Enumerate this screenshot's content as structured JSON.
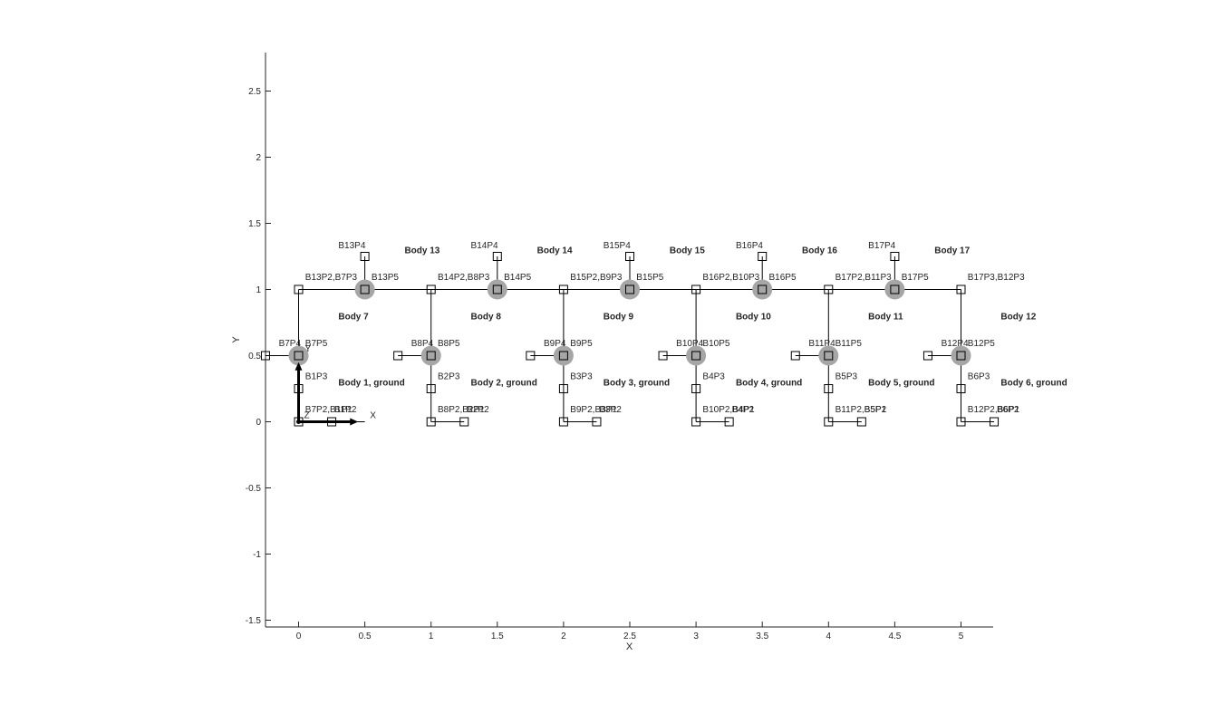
{
  "chart_data": {
    "type": "mechanism-diagram",
    "xlabel": "X",
    "ylabel": "Y",
    "xlim": [
      -0.25,
      5.25
    ],
    "ylim": [
      -1.55,
      2.8
    ],
    "x_ticks": [
      "0",
      "0.5",
      "1",
      "1.5",
      "2",
      "2.5",
      "3",
      "3.5",
      "4",
      "4.5",
      "5"
    ],
    "x_tick_values": [
      0,
      0.5,
      1,
      1.5,
      2,
      2.5,
      3,
      3.5,
      4,
      4.5,
      5
    ],
    "y_ticks": [
      "-1.5",
      "-1",
      "-0.5",
      "0",
      "0.5",
      "1",
      "1.5",
      "2",
      "2.5"
    ],
    "y_tick_values": [
      -1.5,
      -1,
      -0.5,
      0,
      0.5,
      1,
      1.5,
      2,
      2.5
    ],
    "frame_axes": {
      "x_label": "X",
      "y_label": "Y",
      "z_label": "Z",
      "origin": [
        0,
        0
      ],
      "length": 0.45
    },
    "segments": [
      [
        [
          0,
          0
        ],
        [
          0.5,
          0
        ]
      ],
      [
        [
          0,
          0
        ],
        [
          0,
          0.5
        ]
      ],
      [
        [
          0,
          0.5
        ],
        [
          -0.25,
          0.5
        ]
      ],
      [
        [
          0,
          0.5
        ],
        [
          0,
          1
        ]
      ],
      [
        [
          0,
          1
        ],
        [
          1,
          1
        ]
      ],
      [
        [
          0.5,
          1
        ],
        [
          0.5,
          1.25
        ]
      ],
      [
        [
          1,
          0
        ],
        [
          1.25,
          0
        ]
      ],
      [
        [
          1,
          0
        ],
        [
          1,
          0.5
        ]
      ],
      [
        [
          1,
          0.5
        ],
        [
          0.75,
          0.5
        ]
      ],
      [
        [
          1,
          0.5
        ],
        [
          1,
          1
        ]
      ],
      [
        [
          1,
          1
        ],
        [
          2,
          1
        ]
      ],
      [
        [
          1.5,
          1
        ],
        [
          1.5,
          1.25
        ]
      ],
      [
        [
          2,
          0
        ],
        [
          2.25,
          0
        ]
      ],
      [
        [
          2,
          0
        ],
        [
          2,
          0.5
        ]
      ],
      [
        [
          2,
          0.5
        ],
        [
          1.75,
          0.5
        ]
      ],
      [
        [
          2,
          0.5
        ],
        [
          2,
          1
        ]
      ],
      [
        [
          2,
          1
        ],
        [
          3,
          1
        ]
      ],
      [
        [
          2.5,
          1
        ],
        [
          2.5,
          1.25
        ]
      ],
      [
        [
          3,
          0
        ],
        [
          3.25,
          0
        ]
      ],
      [
        [
          3,
          0
        ],
        [
          3,
          0.5
        ]
      ],
      [
        [
          3,
          0.5
        ],
        [
          2.75,
          0.5
        ]
      ],
      [
        [
          3,
          0.5
        ],
        [
          3,
          1
        ]
      ],
      [
        [
          3,
          1
        ],
        [
          4,
          1
        ]
      ],
      [
        [
          3.5,
          1
        ],
        [
          3.5,
          1.25
        ]
      ],
      [
        [
          4,
          0
        ],
        [
          4.25,
          0
        ]
      ],
      [
        [
          4,
          0
        ],
        [
          4,
          0.5
        ]
      ],
      [
        [
          4,
          0.5
        ],
        [
          3.75,
          0.5
        ]
      ],
      [
        [
          4,
          0.5
        ],
        [
          4,
          1
        ]
      ],
      [
        [
          4,
          1
        ],
        [
          5,
          1
        ]
      ],
      [
        [
          4.5,
          1
        ],
        [
          4.5,
          1.25
        ]
      ],
      [
        [
          5,
          0
        ],
        [
          5.25,
          0
        ]
      ],
      [
        [
          5,
          0
        ],
        [
          5,
          0.5
        ]
      ],
      [
        [
          5,
          0.5
        ],
        [
          4.75,
          0.5
        ]
      ],
      [
        [
          5,
          0.5
        ],
        [
          5,
          1
        ]
      ]
    ],
    "markers": [
      [
        0,
        0
      ],
      [
        0.25,
        0
      ],
      [
        0,
        0.25
      ],
      [
        0,
        0.5
      ],
      [
        -0.25,
        0.5
      ],
      [
        0,
        1
      ],
      [
        0.5,
        1
      ],
      [
        0.5,
        1.25
      ],
      [
        1,
        0
      ],
      [
        1.25,
        0
      ],
      [
        1,
        0.25
      ],
      [
        1,
        0.5
      ],
      [
        0.75,
        0.5
      ],
      [
        1,
        1
      ],
      [
        1.5,
        1
      ],
      [
        1.5,
        1.25
      ],
      [
        2,
        0
      ],
      [
        2.25,
        0
      ],
      [
        2,
        0.25
      ],
      [
        2,
        0.5
      ],
      [
        1.75,
        0.5
      ],
      [
        2,
        1
      ],
      [
        2.5,
        1
      ],
      [
        2.5,
        1.25
      ],
      [
        3,
        0
      ],
      [
        3.25,
        0
      ],
      [
        3,
        0.25
      ],
      [
        3,
        0.5
      ],
      [
        2.75,
        0.5
      ],
      [
        3,
        1
      ],
      [
        3.5,
        1
      ],
      [
        3.5,
        1.25
      ],
      [
        4,
        0
      ],
      [
        4.25,
        0
      ],
      [
        4,
        0.25
      ],
      [
        4,
        0.5
      ],
      [
        3.75,
        0.5
      ],
      [
        4,
        1
      ],
      [
        4.5,
        1
      ],
      [
        4.5,
        1.25
      ],
      [
        5,
        0
      ],
      [
        5.25,
        0
      ],
      [
        5,
        0.25
      ],
      [
        5,
        0.5
      ],
      [
        4.75,
        0.5
      ],
      [
        5,
        1
      ]
    ],
    "joints": [
      [
        0,
        0.5
      ],
      [
        0.5,
        1
      ],
      [
        1,
        0.5
      ],
      [
        1.5,
        1
      ],
      [
        2,
        0.5
      ],
      [
        2.5,
        1
      ],
      [
        3,
        0.5
      ],
      [
        3.5,
        1
      ],
      [
        4,
        0.5
      ],
      [
        4.5,
        1
      ],
      [
        5,
        0.5
      ]
    ],
    "point_labels": [
      {
        "text": "B7P2,B1P1",
        "x": 0.05,
        "y": 0.1
      },
      {
        "text": "B1P2",
        "x": 0.27,
        "y": 0.1
      },
      {
        "text": "B1P3",
        "x": 0.05,
        "y": 0.35
      },
      {
        "text": "B7P4",
        "x": -0.15,
        "y": 0.6
      },
      {
        "text": "B7P5",
        "x": 0.05,
        "y": 0.6
      },
      {
        "text": "B13P2,B7P3",
        "x": 0.05,
        "y": 1.1
      },
      {
        "text": "B13P5",
        "x": 0.55,
        "y": 1.1
      },
      {
        "text": "B13P4",
        "x": 0.3,
        "y": 1.34
      },
      {
        "text": "B8P2,B2P1",
        "x": 1.05,
        "y": 0.1
      },
      {
        "text": "B2P2",
        "x": 1.27,
        "y": 0.1
      },
      {
        "text": "B2P3",
        "x": 1.05,
        "y": 0.35
      },
      {
        "text": "B8P4",
        "x": 0.85,
        "y": 0.6
      },
      {
        "text": "B8P5",
        "x": 1.05,
        "y": 0.6
      },
      {
        "text": "B14P2,B8P3",
        "x": 1.05,
        "y": 1.1
      },
      {
        "text": "B14P5",
        "x": 1.55,
        "y": 1.1
      },
      {
        "text": "B14P4",
        "x": 1.3,
        "y": 1.34
      },
      {
        "text": "B9P2,B3P1",
        "x": 2.05,
        "y": 0.1
      },
      {
        "text": "B3P2",
        "x": 2.27,
        "y": 0.1
      },
      {
        "text": "B3P3",
        "x": 2.05,
        "y": 0.35
      },
      {
        "text": "B9P4",
        "x": 1.85,
        "y": 0.6
      },
      {
        "text": "B9P5",
        "x": 2.05,
        "y": 0.6
      },
      {
        "text": "B15P2,B9P3",
        "x": 2.05,
        "y": 1.1
      },
      {
        "text": "B15P5",
        "x": 2.55,
        "y": 1.1
      },
      {
        "text": "B15P4",
        "x": 2.3,
        "y": 1.34
      },
      {
        "text": "B10P2,B4P1",
        "x": 3.05,
        "y": 0.1
      },
      {
        "text": "B4P2",
        "x": 3.27,
        "y": 0.1
      },
      {
        "text": "B4P3",
        "x": 3.05,
        "y": 0.35
      },
      {
        "text": "B10P4",
        "x": 2.85,
        "y": 0.6
      },
      {
        "text": "B10P5",
        "x": 3.05,
        "y": 0.6
      },
      {
        "text": "B16P2,B10P3",
        "x": 3.05,
        "y": 1.1
      },
      {
        "text": "B16P5",
        "x": 3.55,
        "y": 1.1
      },
      {
        "text": "B16P4",
        "x": 3.3,
        "y": 1.34
      },
      {
        "text": "B11P2,B5P1",
        "x": 4.05,
        "y": 0.1
      },
      {
        "text": "B5P2",
        "x": 4.27,
        "y": 0.1
      },
      {
        "text": "B5P3",
        "x": 4.05,
        "y": 0.35
      },
      {
        "text": "B11P4",
        "x": 3.85,
        "y": 0.6
      },
      {
        "text": "B11P5",
        "x": 4.05,
        "y": 0.6
      },
      {
        "text": "B17P2,B11P3",
        "x": 4.05,
        "y": 1.1
      },
      {
        "text": "B17P5",
        "x": 4.55,
        "y": 1.1
      },
      {
        "text": "B17P4",
        "x": 4.3,
        "y": 1.34
      },
      {
        "text": "B12P2,B6P1",
        "x": 5.05,
        "y": 0.1
      },
      {
        "text": "B6P2",
        "x": 5.27,
        "y": 0.1
      },
      {
        "text": "B6P3",
        "x": 5.05,
        "y": 0.35
      },
      {
        "text": "B12P4",
        "x": 4.85,
        "y": 0.6
      },
      {
        "text": "B12P5",
        "x": 5.05,
        "y": 0.6
      },
      {
        "text": "B17P3,B12P3",
        "x": 5.05,
        "y": 1.1
      }
    ],
    "body_labels": [
      {
        "text": "Body 1, ground",
        "x": 0.3,
        "y": 0.3
      },
      {
        "text": "Body 2, ground",
        "x": 1.3,
        "y": 0.3
      },
      {
        "text": "Body 3, ground",
        "x": 2.3,
        "y": 0.3
      },
      {
        "text": "Body 4, ground",
        "x": 3.3,
        "y": 0.3
      },
      {
        "text": "Body 5, ground",
        "x": 4.3,
        "y": 0.3
      },
      {
        "text": "Body 6, ground",
        "x": 5.3,
        "y": 0.3
      },
      {
        "text": "Body 7",
        "x": 0.3,
        "y": 0.8
      },
      {
        "text": "Body 8",
        "x": 1.3,
        "y": 0.8
      },
      {
        "text": "Body 9",
        "x": 2.3,
        "y": 0.8
      },
      {
        "text": "Body 10",
        "x": 3.3,
        "y": 0.8
      },
      {
        "text": "Body 11",
        "x": 4.3,
        "y": 0.8
      },
      {
        "text": "Body 12",
        "x": 5.3,
        "y": 0.8
      },
      {
        "text": "Body 13",
        "x": 0.8,
        "y": 1.3
      },
      {
        "text": "Body 14",
        "x": 1.8,
        "y": 1.3
      },
      {
        "text": "Body 15",
        "x": 2.8,
        "y": 1.3
      },
      {
        "text": "Body 16",
        "x": 3.8,
        "y": 1.3
      },
      {
        "text": "Body 17",
        "x": 4.8,
        "y": 1.3
      }
    ]
  }
}
